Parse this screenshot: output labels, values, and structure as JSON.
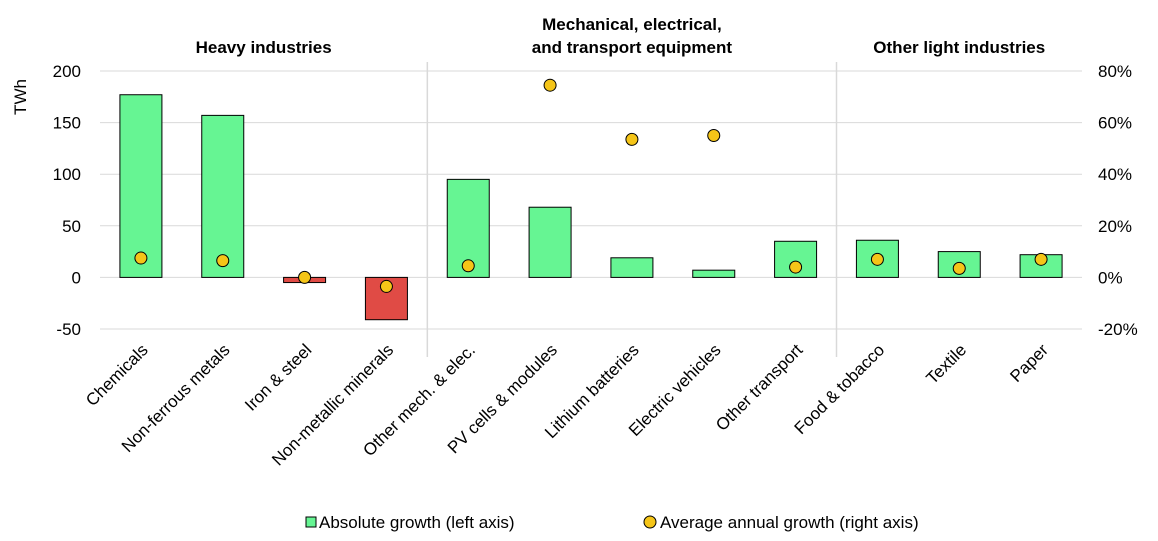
{
  "chart_data": {
    "type": "bar",
    "categories": [
      "Chemicals",
      "Non-ferrous metals",
      "Iron & steel",
      "Non-metallic minerals",
      "Other mech. & elec.",
      "PV cells & modules",
      "Lithium batteries",
      "Electric vehicles",
      "Other transport",
      "Food & tobacco",
      "Textile",
      "Paper"
    ],
    "series": [
      {
        "name": "Absolute growth (left axis)",
        "axis": "left",
        "kind": "bar",
        "values": [
          177,
          157,
          -5,
          -41,
          95,
          68,
          19,
          7,
          35,
          36,
          25,
          22
        ]
      },
      {
        "name": "Average annual growth (right axis)",
        "axis": "right",
        "kind": "scatter",
        "values": [
          7.5,
          6.5,
          0,
          -3.5,
          4.5,
          74.5,
          53.5,
          55,
          4,
          7,
          3.5,
          7
        ]
      }
    ],
    "colors": {
      "bar_positive": "#66f593",
      "bar_negative": "#e04b45",
      "marker": "#f5c518",
      "outline": "#000000",
      "grid": "#d9d9d9"
    },
    "ylabel": "TWh",
    "ylim": [
      -50,
      200
    ],
    "yticks": [
      "200",
      "150",
      "100",
      "50",
      "0",
      "-50"
    ],
    "y2lim": [
      -20,
      80
    ],
    "y2ticks": [
      "80%",
      "60%",
      "40%",
      "20%",
      "0%",
      "-20%"
    ],
    "groups": [
      {
        "label_lines": [
          "Heavy industries"
        ],
        "start": 0,
        "end": 3
      },
      {
        "label_lines": [
          "Mechanical, electrical,",
          "and transport equipment"
        ],
        "start": 4,
        "end": 8
      },
      {
        "label_lines": [
          "Other light industries"
        ],
        "start": 9,
        "end": 11
      }
    ],
    "grid": true,
    "legend_position": "bottom"
  }
}
